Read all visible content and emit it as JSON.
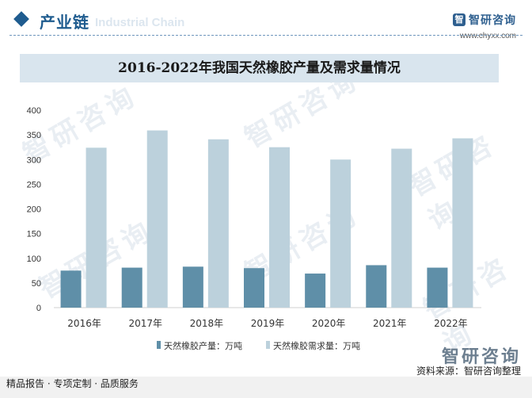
{
  "header": {
    "title": "产业链",
    "subtitle": "Industrial Chain",
    "logo_mark": "智",
    "logo_name": "智研咨询",
    "logo_url": "www.chyxx.com"
  },
  "watermark": "智研咨询",
  "footer": {
    "left": "精品报告 · 专项定制 · 品质服务",
    "source": "资料来源：智研咨询整理"
  },
  "colors": {
    "production": "#5f8fa8",
    "demand": "#bcd1dc",
    "accent": "#1f5c8f"
  },
  "chart_data": {
    "type": "bar",
    "title": "2016-2022年我国天然橡胶产量及需求量情况",
    "categories": [
      "2016年",
      "2017年",
      "2018年",
      "2019年",
      "2020年",
      "2021年",
      "2022年"
    ],
    "series": [
      {
        "name": "天然橡胶产量：万吨",
        "values": [
          75,
          81,
          83,
          80,
          69,
          86,
          81
        ]
      },
      {
        "name": "天然橡胶需求量：万吨",
        "values": [
          324,
          359,
          341,
          325,
          300,
          322,
          343
        ]
      }
    ],
    "ylim": [
      0,
      400
    ],
    "yticks": [
      0,
      50,
      100,
      150,
      200,
      250,
      300,
      350,
      400
    ],
    "xlabel": "",
    "ylabel": "",
    "grid": false,
    "legend": "bottom"
  }
}
